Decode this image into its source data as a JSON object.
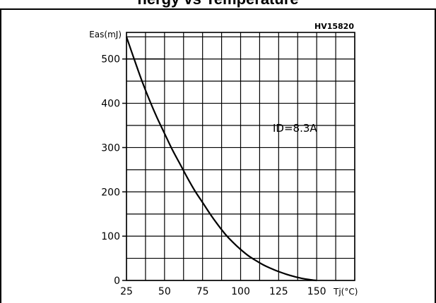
{
  "figure": {
    "code": "HV15820",
    "title_fragment": "nergy vs Temperature"
  },
  "chart_data": {
    "type": "line",
    "title": "",
    "ylabel": "Eas(mJ)",
    "xlabel": "Tj(°C)",
    "xlim": [
      25,
      175
    ],
    "ylim": [
      0,
      560
    ],
    "x_ticks": [
      25,
      50,
      75,
      100,
      125,
      150
    ],
    "y_ticks": [
      0,
      100,
      200,
      300,
      400,
      500
    ],
    "x_grid_step": 12.5,
    "y_grid_step": 50,
    "grid": true,
    "annotation": "ID=8.3A",
    "reference_line": {
      "y": 500,
      "x_from": 25,
      "x_to": 50
    },
    "series": [
      {
        "name": "",
        "x": [
          25,
          30,
          35,
          40,
          45,
          50,
          55,
          60,
          65,
          70,
          75,
          80,
          85,
          90,
          95,
          100,
          105,
          110,
          115,
          120,
          125,
          130,
          135,
          140,
          145,
          150
        ],
        "y": [
          550,
          500,
          452,
          408,
          368,
          332,
          296,
          264,
          232,
          202,
          176,
          150,
          126,
          104,
          86,
          70,
          56,
          45,
          35,
          27,
          20,
          14,
          9,
          5,
          2,
          0
        ]
      }
    ]
  }
}
